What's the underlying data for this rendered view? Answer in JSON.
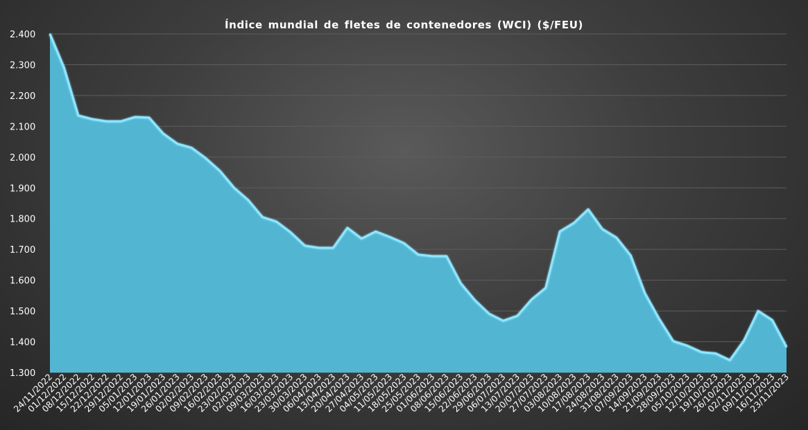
{
  "chart_data": {
    "type": "area",
    "title": "Índice mundial de fletes de contenedores (WCI) ($/FEU)",
    "xlabel": "",
    "ylabel": "",
    "ylim": [
      1300,
      2400
    ],
    "ytick_labels": [
      "1.300",
      "1.400",
      "1.500",
      "1.600",
      "1.700",
      "1.800",
      "1.900",
      "2.000",
      "2.100",
      "2.200",
      "2.300",
      "2.400"
    ],
    "grid": true,
    "legend": "none",
    "colors": {
      "fill": "#52b6d3",
      "line": "#8fe6ff",
      "grid": "#5e5e5e",
      "text": "#ffffff"
    },
    "categories": [
      "24/11/2022",
      "01/12/2022",
      "08/12/2022",
      "15/12/2022",
      "22/12/2022",
      "29/12/2022",
      "05/01/2023",
      "12/01/2023",
      "19/01/2023",
      "26/01/2023",
      "02/02/2023",
      "09/02/2023",
      "16/02/2023",
      "23/02/2023",
      "02/03/2023",
      "09/03/2023",
      "16/03/2023",
      "23/03/2023",
      "30/03/2023",
      "06/04/2023",
      "13/04/2023",
      "20/04/2023",
      "27/04/2023",
      "04/05/2023",
      "11/05/2023",
      "18/05/2023",
      "25/05/2023",
      "01/06/2023",
      "08/06/2023",
      "15/06/2023",
      "22/06/2023",
      "29/06/2023",
      "06/07/2023",
      "13/07/2023",
      "20/07/2023",
      "27/07/2023",
      "03/08/2023",
      "10/08/2023",
      "17/08/2023",
      "24/08/2023",
      "31/08/2023",
      "07/09/2023",
      "14/09/2023",
      "21/09/2023",
      "28/09/2023",
      "05/10/2023",
      "12/10/2023",
      "19/10/2023",
      "26/10/2023",
      "02/11/2023",
      "09/11/2023",
      "16/11/2023",
      "23/11/2023"
    ],
    "values": [
      2400,
      2290,
      2135,
      2123,
      2116,
      2116,
      2130,
      2128,
      2076,
      2043,
      2030,
      1996,
      1955,
      1900,
      1860,
      1805,
      1790,
      1755,
      1712,
      1705,
      1705,
      1770,
      1735,
      1758,
      1740,
      1720,
      1683,
      1678,
      1678,
      1590,
      1535,
      1491,
      1468,
      1484,
      1537,
      1575,
      1758,
      1786,
      1830,
      1766,
      1738,
      1680,
      1558,
      1475,
      1402,
      1387,
      1366,
      1362,
      1340,
      1404,
      1500,
      1470,
      1383
    ]
  }
}
